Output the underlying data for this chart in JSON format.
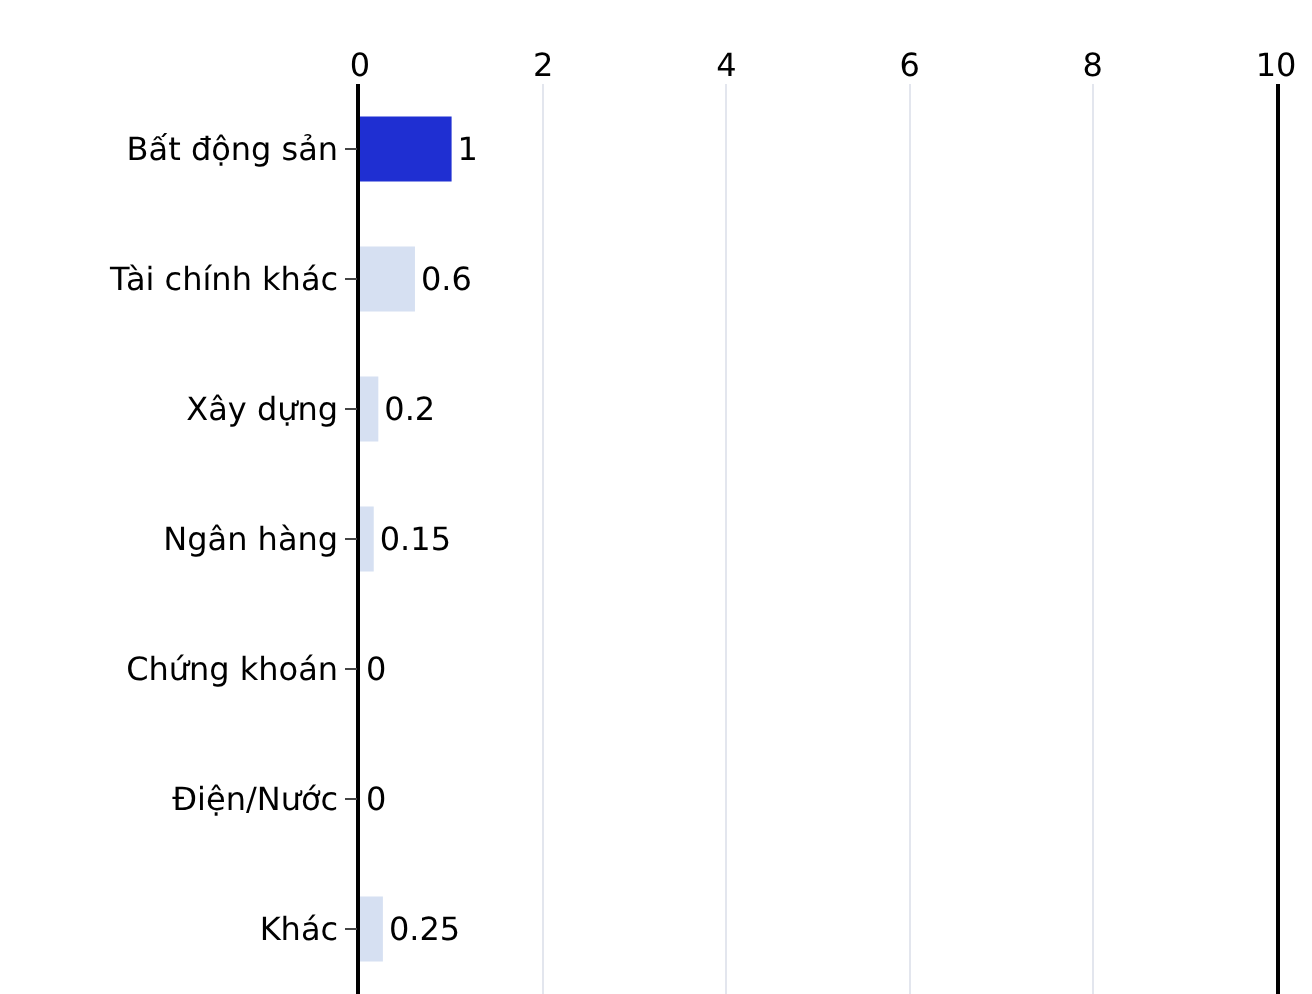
{
  "chart_data": {
    "type": "bar",
    "orientation": "horizontal",
    "categories": [
      "Bất động sản",
      "Tài chính khác",
      "Xây dựng",
      "Ngân hàng",
      "Chứng khoán",
      "Điện/Nước",
      "Khác"
    ],
    "values": [
      1,
      0.6,
      0.2,
      0.15,
      0,
      0,
      0.25
    ],
    "colors": [
      "#1f2fd2",
      "#d6e0f2",
      "#d6e0f2",
      "#d6e0f2",
      "#d6e0f2",
      "#d6e0f2",
      "#d6e0f2"
    ],
    "xlim": [
      0,
      10
    ],
    "xticks": [
      0,
      2,
      4,
      6,
      8,
      10
    ],
    "grid": "x",
    "data_labels": true,
    "legend": false
  }
}
